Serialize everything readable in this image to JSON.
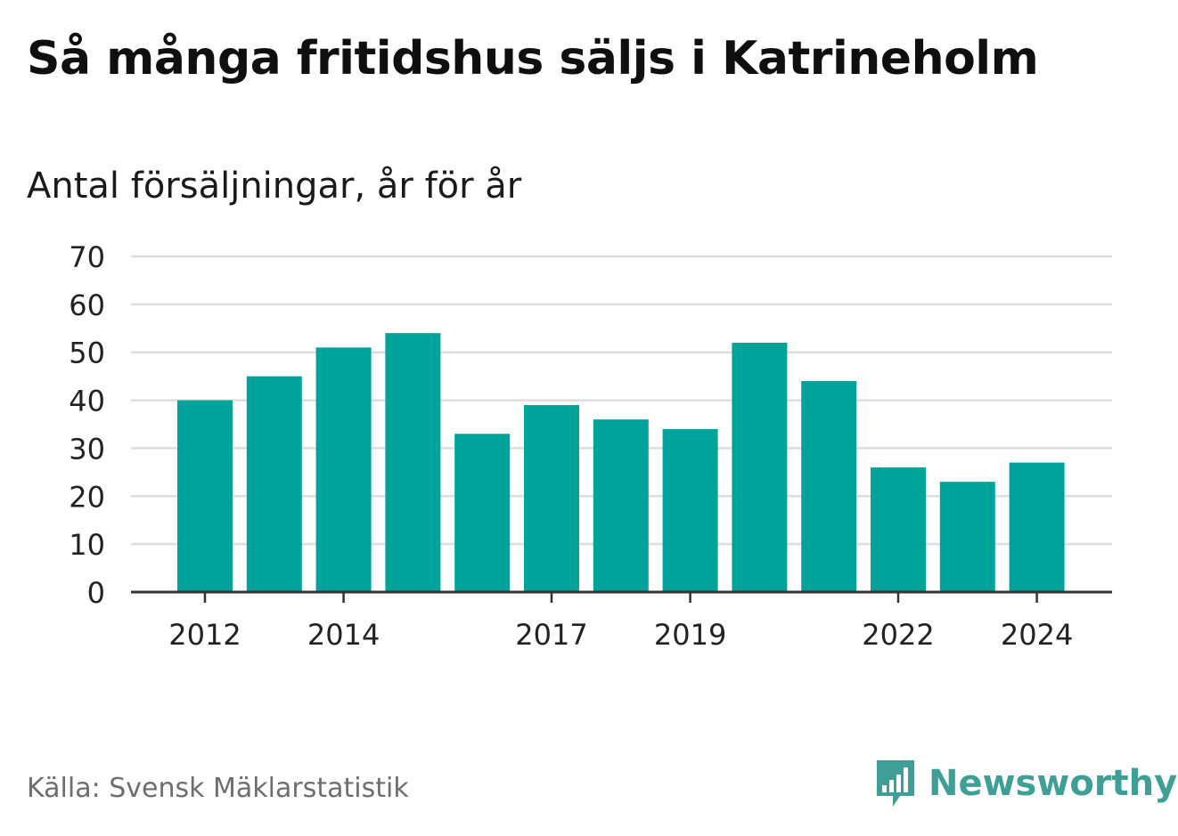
{
  "header": {
    "title": "Så många fritidshus säljs i Katrineholm",
    "subtitle": "Antal försäljningar, år för år"
  },
  "footer": {
    "source": "Källa: Svensk Mäklarstatistik",
    "brand": "Newsworthy",
    "brand_icon": "bar-chart-speech-bubble-icon"
  },
  "colors": {
    "bar": "#00A39A",
    "grid": "#dddddd",
    "axis": "#333333",
    "brand": "#3f9e95"
  },
  "chart_data": {
    "type": "bar",
    "categories": [
      "2012",
      "2013",
      "2014",
      "2015",
      "2016",
      "2017",
      "2018",
      "2019",
      "2020",
      "2021",
      "2022",
      "2023",
      "2024"
    ],
    "values": [
      40,
      45,
      51,
      54,
      33,
      39,
      36,
      34,
      52,
      44,
      26,
      23,
      27
    ],
    "x_tick_labels": [
      "2012",
      "2014",
      "2017",
      "2019",
      "2022",
      "2024"
    ],
    "y_ticks": [
      0,
      10,
      20,
      30,
      40,
      50,
      60,
      70
    ],
    "ylim": [
      0,
      70
    ],
    "grid": true,
    "legend": "none"
  }
}
